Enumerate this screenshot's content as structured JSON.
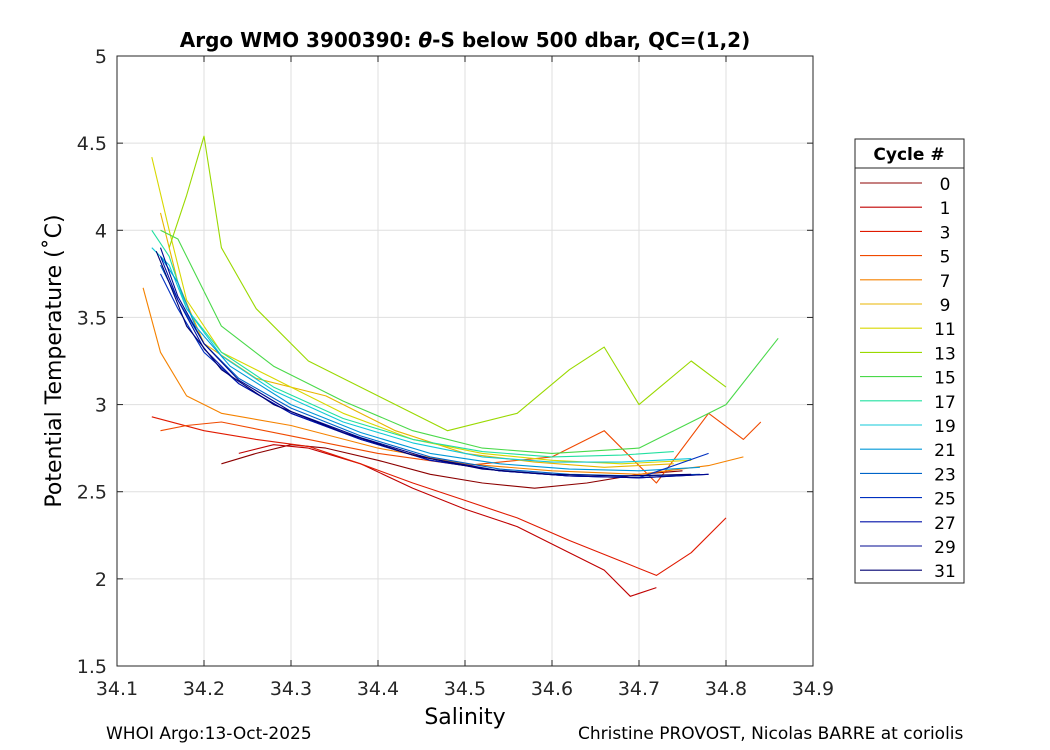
{
  "chart_data": {
    "type": "line",
    "title_prefix": "Argo WMO 3900390: ",
    "title_theta": "θ",
    "title_suffix": "-S below 500 dbar,  QC=(1,2)",
    "xlabel": "Salinity",
    "ylabel": "Potential Temperature (˚C)",
    "xlim": [
      34.1,
      34.9
    ],
    "ylim": [
      1.5,
      5.0
    ],
    "xticks": [
      34.1,
      34.2,
      34.3,
      34.4,
      34.5,
      34.6,
      34.7,
      34.8,
      34.9
    ],
    "yticks": [
      1.5,
      2.0,
      2.5,
      3.0,
      3.5,
      4.0,
      4.5,
      5.0
    ],
    "xtick_labels": [
      "34.1",
      "34.2",
      "34.3",
      "34.4",
      "34.5",
      "34.6",
      "34.7",
      "34.8",
      "34.9"
    ],
    "ytick_labels": [
      "1.5",
      "2",
      "2.5",
      "3",
      "3.5",
      "4",
      "4.5",
      "5"
    ],
    "grid": true,
    "legend": {
      "title": "Cycle #",
      "placement": "outside-right",
      "labels": [
        "0",
        "1",
        "3",
        "5",
        "7",
        "9",
        "11",
        "13",
        "15",
        "17",
        "19",
        "21",
        "23",
        "25",
        "27",
        "29",
        "31"
      ]
    },
    "series": [
      {
        "name": "0",
        "color": "#8c0000",
        "x": [
          34.22,
          34.26,
          34.3,
          34.34,
          34.4,
          34.46,
          34.52,
          34.58,
          34.64,
          34.7,
          34.75
        ],
        "y": [
          2.66,
          2.72,
          2.77,
          2.75,
          2.68,
          2.6,
          2.55,
          2.52,
          2.55,
          2.6,
          2.62
        ]
      },
      {
        "name": "1",
        "color": "#c00000",
        "x": [
          34.24,
          34.28,
          34.32,
          34.38,
          34.44,
          34.5,
          34.56,
          34.62,
          34.66,
          34.69,
          34.72
        ],
        "y": [
          2.72,
          2.77,
          2.75,
          2.66,
          2.52,
          2.4,
          2.3,
          2.15,
          2.05,
          1.9,
          1.95
        ]
      },
      {
        "name": "3",
        "color": "#e01a00",
        "x": [
          34.14,
          34.2,
          34.26,
          34.32,
          34.38,
          34.44,
          34.5,
          34.56,
          34.62,
          34.68,
          34.72,
          34.76,
          34.8
        ],
        "y": [
          2.93,
          2.85,
          2.8,
          2.76,
          2.66,
          2.55,
          2.45,
          2.35,
          2.22,
          2.1,
          2.02,
          2.15,
          2.35
        ]
      },
      {
        "name": "5",
        "color": "#f04a00",
        "x": [
          34.15,
          34.18,
          34.22,
          34.3,
          34.4,
          34.5,
          34.6,
          34.66,
          34.72,
          34.78,
          34.82,
          34.84
        ],
        "y": [
          2.85,
          2.88,
          2.9,
          2.82,
          2.72,
          2.65,
          2.7,
          2.85,
          2.55,
          2.95,
          2.8,
          2.9
        ]
      },
      {
        "name": "7",
        "color": "#f58200",
        "x": [
          34.13,
          34.15,
          34.18,
          34.22,
          34.3,
          34.4,
          34.5,
          34.6,
          34.7,
          34.78,
          34.82
        ],
        "y": [
          3.67,
          3.3,
          3.05,
          2.95,
          2.88,
          2.75,
          2.66,
          2.62,
          2.6,
          2.65,
          2.7
        ]
      },
      {
        "name": "9",
        "color": "#e8b400",
        "x": [
          34.15,
          34.17,
          34.2,
          34.26,
          34.34,
          34.42,
          34.5,
          34.58,
          34.66,
          34.74
        ],
        "y": [
          4.1,
          3.7,
          3.35,
          3.15,
          3.05,
          2.85,
          2.72,
          2.67,
          2.64,
          2.66
        ]
      },
      {
        "name": "11",
        "color": "#d8d800",
        "x": [
          34.14,
          34.16,
          34.18,
          34.22,
          34.28,
          34.36,
          34.44,
          34.52,
          34.6,
          34.68,
          34.76
        ],
        "y": [
          4.42,
          4.0,
          3.6,
          3.3,
          3.15,
          2.95,
          2.8,
          2.72,
          2.68,
          2.66,
          2.68
        ]
      },
      {
        "name": "13",
        "color": "#9ad900",
        "x": [
          34.16,
          34.18,
          34.2,
          34.22,
          34.26,
          34.32,
          34.4,
          34.48,
          34.56,
          34.62,
          34.66,
          34.7,
          34.76,
          34.8
        ],
        "y": [
          3.9,
          4.2,
          4.54,
          3.9,
          3.55,
          3.25,
          3.05,
          2.85,
          2.95,
          3.2,
          3.33,
          3.0,
          3.25,
          3.1
        ]
      },
      {
        "name": "15",
        "color": "#4ad94a",
        "x": [
          34.15,
          34.17,
          34.19,
          34.22,
          34.28,
          34.36,
          34.44,
          34.52,
          34.6,
          34.7,
          34.8,
          34.86
        ],
        "y": [
          4.0,
          3.95,
          3.75,
          3.45,
          3.22,
          3.02,
          2.85,
          2.75,
          2.72,
          2.75,
          3.0,
          3.38
        ]
      },
      {
        "name": "17",
        "color": "#22e0a0",
        "x": [
          34.14,
          34.16,
          34.18,
          34.22,
          34.28,
          34.36,
          34.44,
          34.52,
          34.6,
          34.68,
          34.74
        ],
        "y": [
          4.0,
          3.85,
          3.55,
          3.3,
          3.1,
          2.92,
          2.8,
          2.73,
          2.7,
          2.71,
          2.73
        ]
      },
      {
        "name": "19",
        "color": "#10c8d8",
        "x": [
          34.14,
          34.16,
          34.18,
          34.22,
          34.28,
          34.36,
          34.44,
          34.52,
          34.6,
          34.68,
          34.76
        ],
        "y": [
          3.9,
          3.8,
          3.55,
          3.28,
          3.08,
          2.9,
          2.78,
          2.7,
          2.67,
          2.67,
          2.69
        ]
      },
      {
        "name": "21",
        "color": "#0098d8",
        "x": [
          34.15,
          34.17,
          34.19,
          34.23,
          34.3,
          34.38,
          34.46,
          34.54,
          34.62,
          34.7,
          34.77
        ],
        "y": [
          3.85,
          3.7,
          3.45,
          3.22,
          3.0,
          2.84,
          2.72,
          2.66,
          2.63,
          2.62,
          2.64
        ]
      },
      {
        "name": "23",
        "color": "#0064c8",
        "x": [
          34.15,
          34.17,
          34.2,
          34.24,
          34.3,
          34.38,
          34.46,
          34.54,
          34.62,
          34.7,
          34.77
        ],
        "y": [
          3.8,
          3.6,
          3.35,
          3.15,
          2.98,
          2.82,
          2.7,
          2.63,
          2.6,
          2.59,
          2.6
        ]
      },
      {
        "name": "25",
        "color": "#0030c0",
        "x": [
          34.15,
          34.17,
          34.2,
          34.24,
          34.3,
          34.38,
          34.46,
          34.54,
          34.62,
          34.7,
          34.78
        ],
        "y": [
          3.75,
          3.55,
          3.3,
          3.12,
          2.95,
          2.8,
          2.68,
          2.62,
          2.59,
          2.58,
          2.72
        ]
      },
      {
        "name": "27",
        "color": "#0010a8",
        "x": [
          34.15,
          34.17,
          34.2,
          34.24,
          34.3,
          34.38,
          34.46,
          34.54,
          34.62,
          34.7,
          34.78
        ],
        "y": [
          3.85,
          3.6,
          3.32,
          3.12,
          2.95,
          2.8,
          2.68,
          2.62,
          2.59,
          2.58,
          2.6
        ]
      },
      {
        "name": "29",
        "color": "#000890",
        "x": [
          34.15,
          34.17,
          34.2,
          34.24,
          34.3,
          34.38,
          34.46,
          34.54,
          34.62,
          34.7,
          34.78
        ],
        "y": [
          3.9,
          3.62,
          3.35,
          3.14,
          2.96,
          2.81,
          2.69,
          2.62,
          2.59,
          2.58,
          2.6
        ]
      },
      {
        "name": "31",
        "color": "#000070",
        "x": [
          34.145,
          34.16,
          34.18,
          34.22,
          34.28,
          34.36,
          34.44,
          34.52,
          34.6,
          34.68,
          34.76
        ],
        "y": [
          3.88,
          3.7,
          3.45,
          3.2,
          3.0,
          2.84,
          2.71,
          2.63,
          2.6,
          2.59,
          2.6
        ]
      }
    ]
  },
  "footer": {
    "left": "WHOI Argo:13-Oct-2025",
    "right": "Christine PROVOST, Nicolas BARRE at coriolis"
  }
}
